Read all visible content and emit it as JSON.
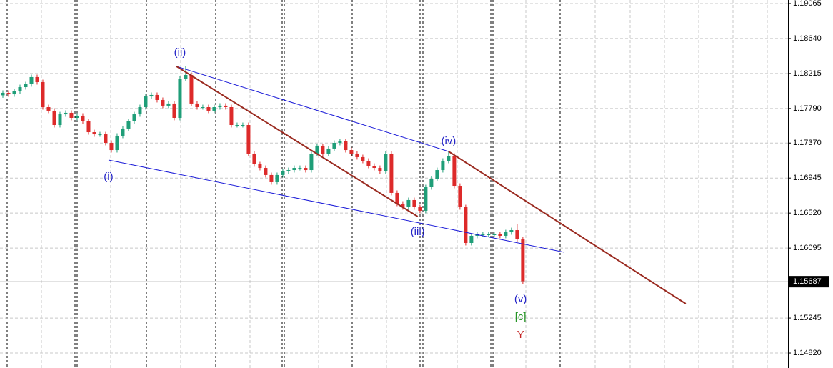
{
  "chart_data": {
    "type": "candlestick",
    "categories": [
      null,
      null,
      null,
      null,
      null,
      null,
      null,
      null,
      null,
      null,
      null,
      null,
      null,
      null,
      null,
      null,
      null,
      null,
      null,
      null,
      null,
      null,
      null,
      null,
      null,
      null,
      null,
      null,
      null,
      null,
      null,
      null,
      null,
      null,
      null,
      null,
      null,
      null,
      null,
      null,
      null,
      null,
      null,
      null,
      null,
      null,
      null,
      null,
      null,
      null,
      null,
      null,
      null,
      null,
      null,
      null,
      null,
      null,
      null,
      null,
      null,
      null,
      null,
      null,
      null,
      null,
      null,
      null,
      null,
      null,
      null,
      null,
      null,
      null,
      null,
      null,
      null,
      null,
      null,
      null,
      null,
      null,
      null,
      null,
      null,
      null,
      null,
      null,
      null,
      null,
      null,
      null
    ],
    "open": [
      1.1795,
      1.1798,
      1.17962,
      1.17997,
      1.18049,
      1.18084,
      1.18171,
      1.1811,
      1.17806,
      1.17763,
      1.17589,
      1.17719,
      1.17737,
      1.17676,
      1.17702,
      1.17633,
      1.17502,
      1.17476,
      1.17476,
      1.17372,
      1.17285,
      1.17459,
      1.17546,
      1.17633,
      1.17719,
      1.17806,
      1.17936,
      1.17954,
      1.17893,
      1.17824,
      1.1785,
      1.17676,
      1.18153,
      1.18197,
      1.1785,
      1.17806,
      1.17806,
      1.17763,
      1.17806,
      1.17824,
      1.17806,
      1.17589,
      1.17589,
      1.17589,
      1.17242,
      1.17112,
      1.17068,
      1.16982,
      1.16895,
      1.16982,
      1.17025,
      1.17042,
      1.17068,
      1.17068,
      1.17042,
      1.17242,
      1.17329,
      1.17242,
      1.17303,
      1.17372,
      1.1739,
      1.17285,
      1.17242,
      1.17199,
      1.17155,
      1.17094,
      1.17068,
      1.17025,
      1.17242,
      1.16765,
      1.16634,
      1.16591,
      1.16678,
      1.16591,
      1.16548,
      1.16834,
      1.16938,
      1.17042,
      1.17155,
      1.17216,
      1.16851,
      1.16591,
      1.16157,
      1.16244,
      1.16261,
      1.16261,
      1.16261,
      1.16261,
      1.16244,
      1.16287,
      1.16313,
      1.162
    ],
    "high": [
      1.1801,
      1.1801,
      1.18027,
      1.18079,
      1.18114,
      1.18201,
      1.18201,
      1.1814,
      1.17836,
      1.17793,
      1.17749,
      1.17767,
      1.17767,
      1.17732,
      1.17732,
      1.17663,
      1.17532,
      1.17506,
      1.17506,
      1.17402,
      1.17489,
      1.17576,
      1.17663,
      1.17749,
      1.17836,
      1.17966,
      1.17984,
      1.17984,
      1.17923,
      1.1788,
      1.1788,
      1.18183,
      1.18301,
      1.18227,
      1.1788,
      1.17836,
      1.17836,
      1.17836,
      1.17854,
      1.17854,
      1.17836,
      1.17619,
      1.17619,
      1.17619,
      1.17272,
      1.17142,
      1.17098,
      1.17012,
      1.17012,
      1.17055,
      1.17072,
      1.17098,
      1.17098,
      1.17098,
      1.17272,
      1.17359,
      1.17359,
      1.17333,
      1.17402,
      1.1742,
      1.1742,
      1.17315,
      1.17272,
      1.17229,
      1.17185,
      1.17124,
      1.17098,
      1.17272,
      1.17272,
      1.16795,
      1.16664,
      1.16708,
      1.16708,
      1.16621,
      1.16864,
      1.16968,
      1.17072,
      1.17185,
      1.17268,
      1.17246,
      1.16881,
      1.16621,
      1.16274,
      1.16291,
      1.16291,
      1.16291,
      1.16291,
      1.16291,
      1.16317,
      1.16343,
      1.16391,
      1.1623
    ],
    "low": [
      1.1792,
      1.17932,
      1.17932,
      1.17967,
      1.18019,
      1.18054,
      1.1808,
      1.17776,
      1.17733,
      1.17559,
      1.17559,
      1.17689,
      1.17646,
      1.17646,
      1.17603,
      1.17472,
      1.17446,
      1.17446,
      1.17342,
      1.17255,
      1.17255,
      1.17429,
      1.17516,
      1.17603,
      1.17689,
      1.17776,
      1.17906,
      1.17863,
      1.17794,
      1.17794,
      1.17646,
      1.17646,
      1.18123,
      1.1782,
      1.17776,
      1.17776,
      1.17733,
      1.17733,
      1.17776,
      1.17776,
      1.17559,
      1.17559,
      1.17559,
      1.17212,
      1.17082,
      1.17038,
      1.16952,
      1.16865,
      1.16865,
      1.16952,
      1.16995,
      1.17012,
      1.17038,
      1.17012,
      1.17012,
      1.17212,
      1.17212,
      1.17212,
      1.17273,
      1.17342,
      1.17255,
      1.17212,
      1.17169,
      1.17125,
      1.17064,
      1.17038,
      1.16995,
      1.16995,
      1.16735,
      1.16604,
      1.16561,
      1.16561,
      1.16561,
      1.16518,
      1.16518,
      1.16804,
      1.16908,
      1.17012,
      1.17125,
      1.16821,
      1.16561,
      1.16127,
      1.16127,
      1.16214,
      1.16231,
      1.16231,
      1.16231,
      1.16214,
      1.16214,
      1.16257,
      1.1617,
      1.15657
    ],
    "close": [
      1.1798,
      1.17962,
      1.17997,
      1.18049,
      1.18084,
      1.18171,
      1.1811,
      1.17806,
      1.17763,
      1.17589,
      1.17719,
      1.17737,
      1.17676,
      1.17702,
      1.17633,
      1.17502,
      1.17476,
      1.17476,
      1.17372,
      1.17285,
      1.17459,
      1.17546,
      1.17633,
      1.17719,
      1.17806,
      1.17936,
      1.17954,
      1.17893,
      1.17824,
      1.1785,
      1.17676,
      1.18153,
      1.18197,
      1.1785,
      1.17806,
      1.17806,
      1.17763,
      1.17806,
      1.17824,
      1.17806,
      1.17589,
      1.17589,
      1.17589,
      1.17242,
      1.17112,
      1.17068,
      1.16982,
      1.16895,
      1.16982,
      1.17025,
      1.17042,
      1.17068,
      1.17068,
      1.17042,
      1.17242,
      1.17329,
      1.17242,
      1.17303,
      1.17372,
      1.1739,
      1.17285,
      1.17242,
      1.17199,
      1.17155,
      1.17094,
      1.17068,
      1.17025,
      1.17242,
      1.16765,
      1.16634,
      1.16591,
      1.16678,
      1.16591,
      1.16548,
      1.16834,
      1.16938,
      1.17042,
      1.17155,
      1.17216,
      1.16851,
      1.16591,
      1.16157,
      1.16244,
      1.16261,
      1.16261,
      1.16261,
      1.16261,
      1.16244,
      1.16287,
      1.16313,
      1.162,
      1.15687
    ],
    "up_color": "#1f9e78",
    "down_color": "#dd2a2a",
    "xlim": [
      -0.5,
      137.4
    ],
    "ylim": [
      1.14638,
      1.19108
    ],
    "yticks": [
      1.19065,
      {
        "value": 1.1864,
        "label": "1.18640"
      },
      1.18215,
      {
        "value": 1.1779,
        "label": "1.17790"
      },
      {
        "value": 1.1737,
        "label": "1.17370"
      },
      1.16945,
      {
        "value": 1.1652,
        "label": "1.16520"
      },
      1.16095,
      1.15245,
      {
        "value": 1.1482,
        "label": "1.14820"
      }
    ],
    "grid": true,
    "current_price": 1.15687,
    "trend_lines": [
      {
        "color": "#1c1cd8",
        "x": [
          18.5,
          98.25
        ],
        "y": [
          1.17164,
          1.16044
        ]
      },
      {
        "color": "#1c1cd8",
        "x": [
          30.4,
          78
        ],
        "y": [
          1.18301,
          1.17268
        ]
      },
      {
        "color": "#9a2a20",
        "x": [
          30.4,
          72.6
        ],
        "y": [
          1.18301,
          1.16478
        ]
      },
      {
        "color": "#9a2a20",
        "x": [
          78,
          119.5
        ],
        "y": [
          1.17268,
          1.15419
        ]
      }
    ],
    "wave_labels": [
      {
        "text": "(i)",
        "x": 18.5,
        "y": 1.16956,
        "color": "#2424c8"
      },
      {
        "text": "(ii)",
        "x": 31,
        "y": 1.18466,
        "color": "#2424c8"
      },
      {
        "text": "(iii)",
        "x": 72.6,
        "y": 1.16287,
        "color": "#2424c8"
      },
      {
        "text": "(iv)",
        "x": 78,
        "y": 1.1739,
        "color": "#2424c8"
      },
      {
        "text": "(v)",
        "x": 90.6,
        "y": 1.15471,
        "color": "#2424c8"
      },
      {
        "text": "[c]",
        "x": 90.6,
        "y": 1.15254,
        "color": "#249424"
      },
      {
        "text": "Y",
        "x": 90.6,
        "y": 1.15037,
        "color": "#c42424"
      }
    ]
  }
}
